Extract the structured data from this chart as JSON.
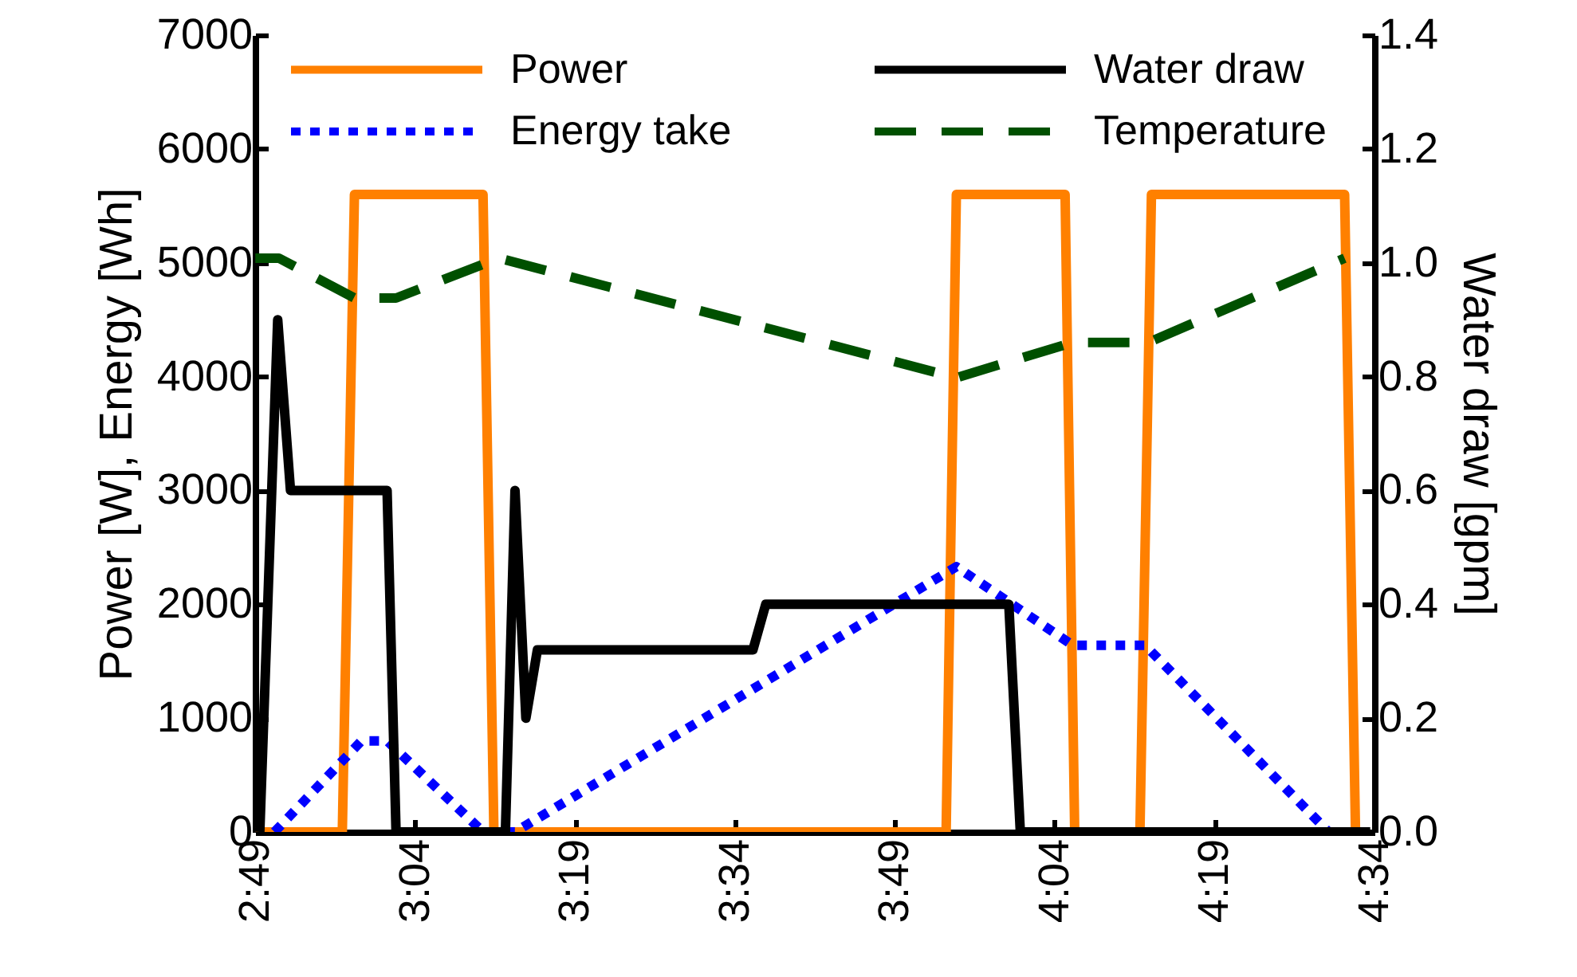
{
  "chart_data": {
    "type": "line",
    "ylabel": "Power [W], Energy [Wh]",
    "y2label": "Water draw [gpm]",
    "xlim": [
      2.8167,
      4.5667
    ],
    "xticks": [
      {
        "value": 2.8167,
        "label": "2:49"
      },
      {
        "value": 3.0667,
        "label": "3:04"
      },
      {
        "value": 3.3167,
        "label": "3:19"
      },
      {
        "value": 3.5667,
        "label": "3:34"
      },
      {
        "value": 3.8167,
        "label": "3:49"
      },
      {
        "value": 4.0667,
        "label": "4:04"
      },
      {
        "value": 4.3167,
        "label": "4:19"
      },
      {
        "value": 4.5667,
        "label": "4:34"
      }
    ],
    "ylim": [
      0,
      7000
    ],
    "yticks": [
      0,
      1000,
      2000,
      3000,
      4000,
      5000,
      6000,
      7000
    ],
    "y2lim": [
      0,
      1.4
    ],
    "y2ticks": [
      {
        "value": 0,
        "label": "0.0"
      },
      {
        "value": 0.2,
        "label": "0.2"
      },
      {
        "value": 0.4,
        "label": "0.4"
      },
      {
        "value": 0.6,
        "label": "0.6"
      },
      {
        "value": 0.8,
        "label": "0.8"
      },
      {
        "value": 1,
        "label": "1.0"
      },
      {
        "value": 1.2,
        "label": "1.2"
      },
      {
        "value": 1.4,
        "label": "1.4"
      }
    ],
    "legend": "top",
    "series": [
      {
        "name": "Power",
        "color": "#ff8000",
        "line_style": "solid",
        "x": [
          2.817,
          2.953,
          2.972,
          3.173,
          3.19,
          3.897,
          3.913,
          4.083,
          4.098,
          4.2,
          4.218,
          4.52,
          4.537
        ],
        "values": [
          0,
          0,
          5600,
          5600,
          0,
          0,
          5600,
          5600,
          0,
          0,
          5600,
          5600,
          0
        ]
      },
      {
        "name": "Water draw",
        "color": "#000000",
        "line_style": "solid",
        "axis": "y2",
        "x": [
          2.824,
          2.852,
          2.872,
          3.023,
          3.037,
          3.208,
          3.223,
          3.24,
          3.258,
          3.595,
          3.615,
          3.995,
          4.013,
          4.56
        ],
        "values": [
          0,
          0.9,
          0.6,
          0.6,
          0,
          0,
          0.6,
          0.2,
          0.32,
          0.32,
          0.4,
          0.4,
          0,
          0
        ]
      },
      {
        "name": "Energy take",
        "color": "#0000ff",
        "line_style": "dotted",
        "x": [
          2.847,
          2.983,
          3.023,
          3.173,
          3.223,
          3.913,
          4.095,
          4.208,
          4.495
        ],
        "values": [
          0,
          800,
          800,
          0,
          0,
          2330,
          1640,
          1640,
          0
        ]
      },
      {
        "name": "Temperature",
        "color": "#005000",
        "line_style": "dashed",
        "x": [
          2.817,
          2.854,
          2.972,
          3.037,
          3.198,
          3.913,
          4.095,
          4.213,
          4.52
        ],
        "values": [
          5040,
          5040,
          4690,
          4690,
          5040,
          3990,
          4300,
          4300,
          5040
        ]
      }
    ]
  }
}
